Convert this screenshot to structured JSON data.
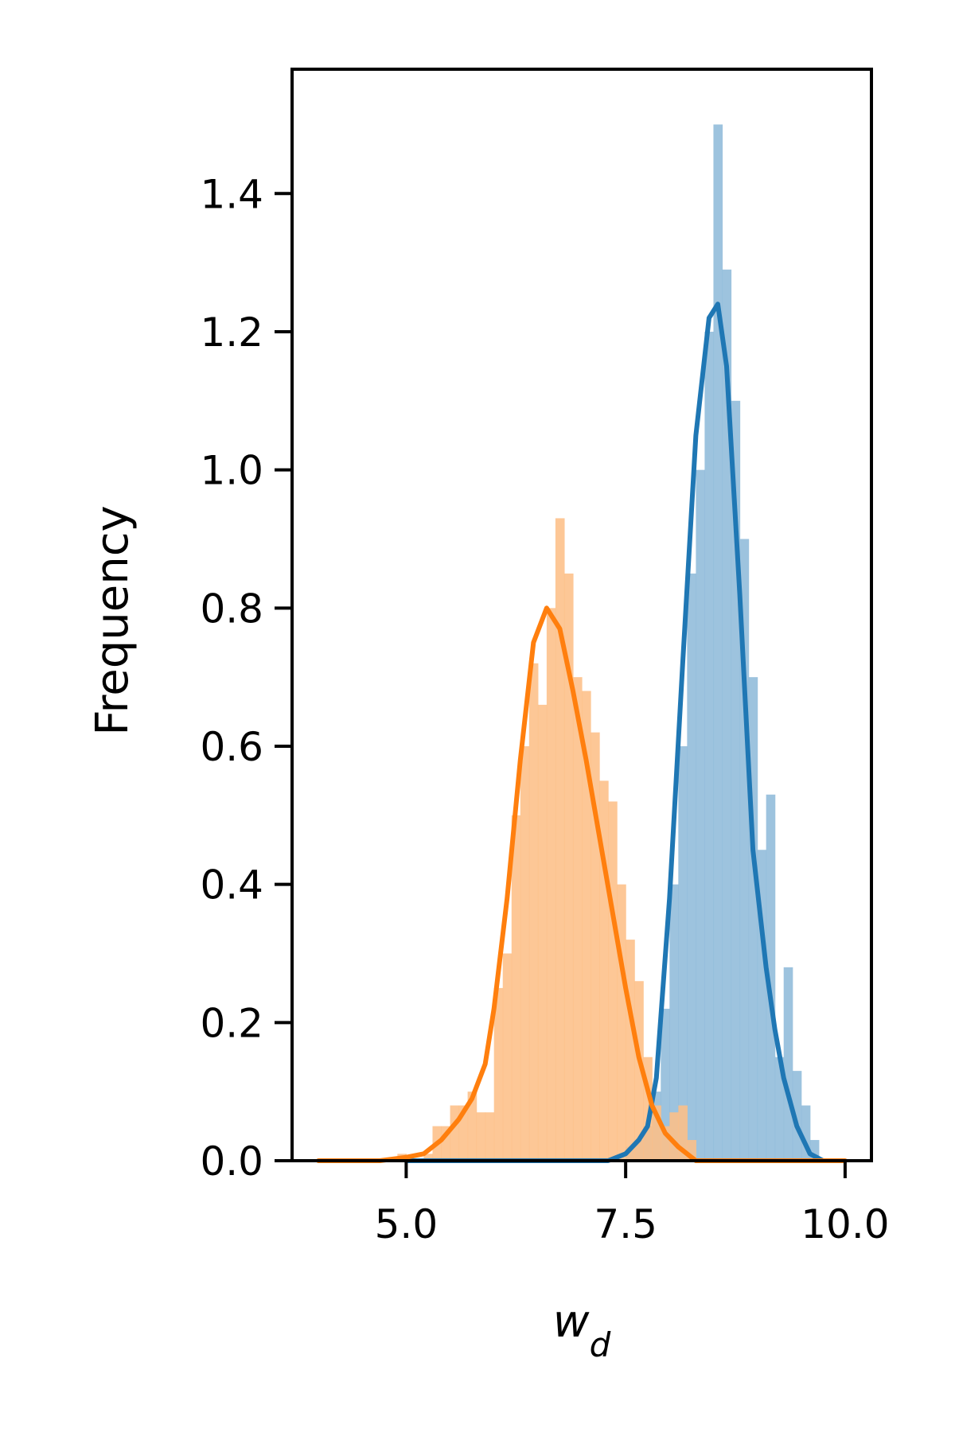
{
  "chart_data": {
    "type": "histogram",
    "xlabel": "w",
    "xlabel_subscript": "d",
    "ylabel": "Frequency",
    "xlim": [
      3.7,
      10.3
    ],
    "ylim": [
      0.0,
      1.58
    ],
    "xticks": [
      5.0,
      7.5,
      10.0
    ],
    "xtick_labels": [
      "5.0",
      "7.5",
      "10.0"
    ],
    "yticks": [
      0.0,
      0.2,
      0.4,
      0.6,
      0.8,
      1.0,
      1.2,
      1.4
    ],
    "ytick_labels": [
      "0.0",
      "0.2",
      "0.4",
      "0.6",
      "0.8",
      "1.0",
      "1.2",
      "1.4"
    ],
    "grid": false,
    "legend": "none",
    "series": [
      {
        "color": "#1f77b4",
        "bar_color": "#8fbbd9",
        "hist_bins": [
          [
            7.55,
            0.02
          ],
          [
            7.65,
            0.03
          ],
          [
            7.75,
            0.05
          ],
          [
            7.85,
            0.1
          ],
          [
            7.95,
            0.22
          ],
          [
            8.05,
            0.4
          ],
          [
            8.15,
            0.6
          ],
          [
            8.25,
            0.85
          ],
          [
            8.35,
            1.0
          ],
          [
            8.45,
            1.2
          ],
          [
            8.55,
            1.5
          ],
          [
            8.65,
            1.29
          ],
          [
            8.75,
            1.1
          ],
          [
            8.85,
            0.9
          ],
          [
            8.95,
            0.7
          ],
          [
            9.05,
            0.45
          ],
          [
            9.15,
            0.53
          ],
          [
            9.25,
            0.15
          ],
          [
            9.35,
            0.28
          ],
          [
            9.45,
            0.13
          ],
          [
            9.55,
            0.08
          ],
          [
            9.65,
            0.03
          ]
        ],
        "kde": [
          [
            5.0,
            0.0
          ],
          [
            7.0,
            0.0
          ],
          [
            7.3,
            0.0
          ],
          [
            7.5,
            0.01
          ],
          [
            7.65,
            0.03
          ],
          [
            7.75,
            0.05
          ],
          [
            7.85,
            0.12
          ],
          [
            8.0,
            0.38
          ],
          [
            8.15,
            0.72
          ],
          [
            8.3,
            1.05
          ],
          [
            8.45,
            1.22
          ],
          [
            8.55,
            1.24
          ],
          [
            8.65,
            1.15
          ],
          [
            8.8,
            0.82
          ],
          [
            8.95,
            0.45
          ],
          [
            9.1,
            0.28
          ],
          [
            9.2,
            0.19
          ],
          [
            9.3,
            0.12
          ],
          [
            9.45,
            0.05
          ],
          [
            9.6,
            0.01
          ],
          [
            9.75,
            0.0
          ]
        ]
      },
      {
        "color": "#ff7f0e",
        "bar_color": "#fdbf88",
        "hist_bins": [
          [
            4.95,
            0.01
          ],
          [
            5.25,
            0.01
          ],
          [
            5.35,
            0.05
          ],
          [
            5.45,
            0.05
          ],
          [
            5.55,
            0.08
          ],
          [
            5.65,
            0.08
          ],
          [
            5.75,
            0.1
          ],
          [
            5.85,
            0.07
          ],
          [
            5.95,
            0.07
          ],
          [
            6.05,
            0.25
          ],
          [
            6.15,
            0.3
          ],
          [
            6.25,
            0.5
          ],
          [
            6.35,
            0.6
          ],
          [
            6.45,
            0.72
          ],
          [
            6.55,
            0.66
          ],
          [
            6.65,
            0.8
          ],
          [
            6.75,
            0.93
          ],
          [
            6.85,
            0.85
          ],
          [
            6.95,
            0.7
          ],
          [
            7.05,
            0.68
          ],
          [
            7.15,
            0.62
          ],
          [
            7.25,
            0.55
          ],
          [
            7.35,
            0.52
          ],
          [
            7.45,
            0.4
          ],
          [
            7.55,
            0.32
          ],
          [
            7.65,
            0.26
          ],
          [
            7.75,
            0.15
          ],
          [
            7.85,
            0.08
          ],
          [
            7.95,
            0.05
          ],
          [
            8.05,
            0.07
          ],
          [
            8.15,
            0.08
          ],
          [
            8.25,
            0.03
          ]
        ],
        "kde": [
          [
            4.0,
            0.0
          ],
          [
            4.7,
            0.0
          ],
          [
            5.0,
            0.005
          ],
          [
            5.2,
            0.01
          ],
          [
            5.4,
            0.03
          ],
          [
            5.6,
            0.06
          ],
          [
            5.75,
            0.09
          ],
          [
            5.9,
            0.14
          ],
          [
            6.0,
            0.22
          ],
          [
            6.15,
            0.38
          ],
          [
            6.3,
            0.58
          ],
          [
            6.45,
            0.75
          ],
          [
            6.6,
            0.8
          ],
          [
            6.75,
            0.77
          ],
          [
            6.9,
            0.68
          ],
          [
            7.05,
            0.58
          ],
          [
            7.2,
            0.47
          ],
          [
            7.35,
            0.36
          ],
          [
            7.5,
            0.25
          ],
          [
            7.65,
            0.15
          ],
          [
            7.8,
            0.08
          ],
          [
            7.95,
            0.04
          ],
          [
            8.1,
            0.02
          ],
          [
            8.3,
            0.0
          ],
          [
            9.0,
            0.0
          ],
          [
            10.0,
            0.0
          ]
        ]
      }
    ]
  }
}
